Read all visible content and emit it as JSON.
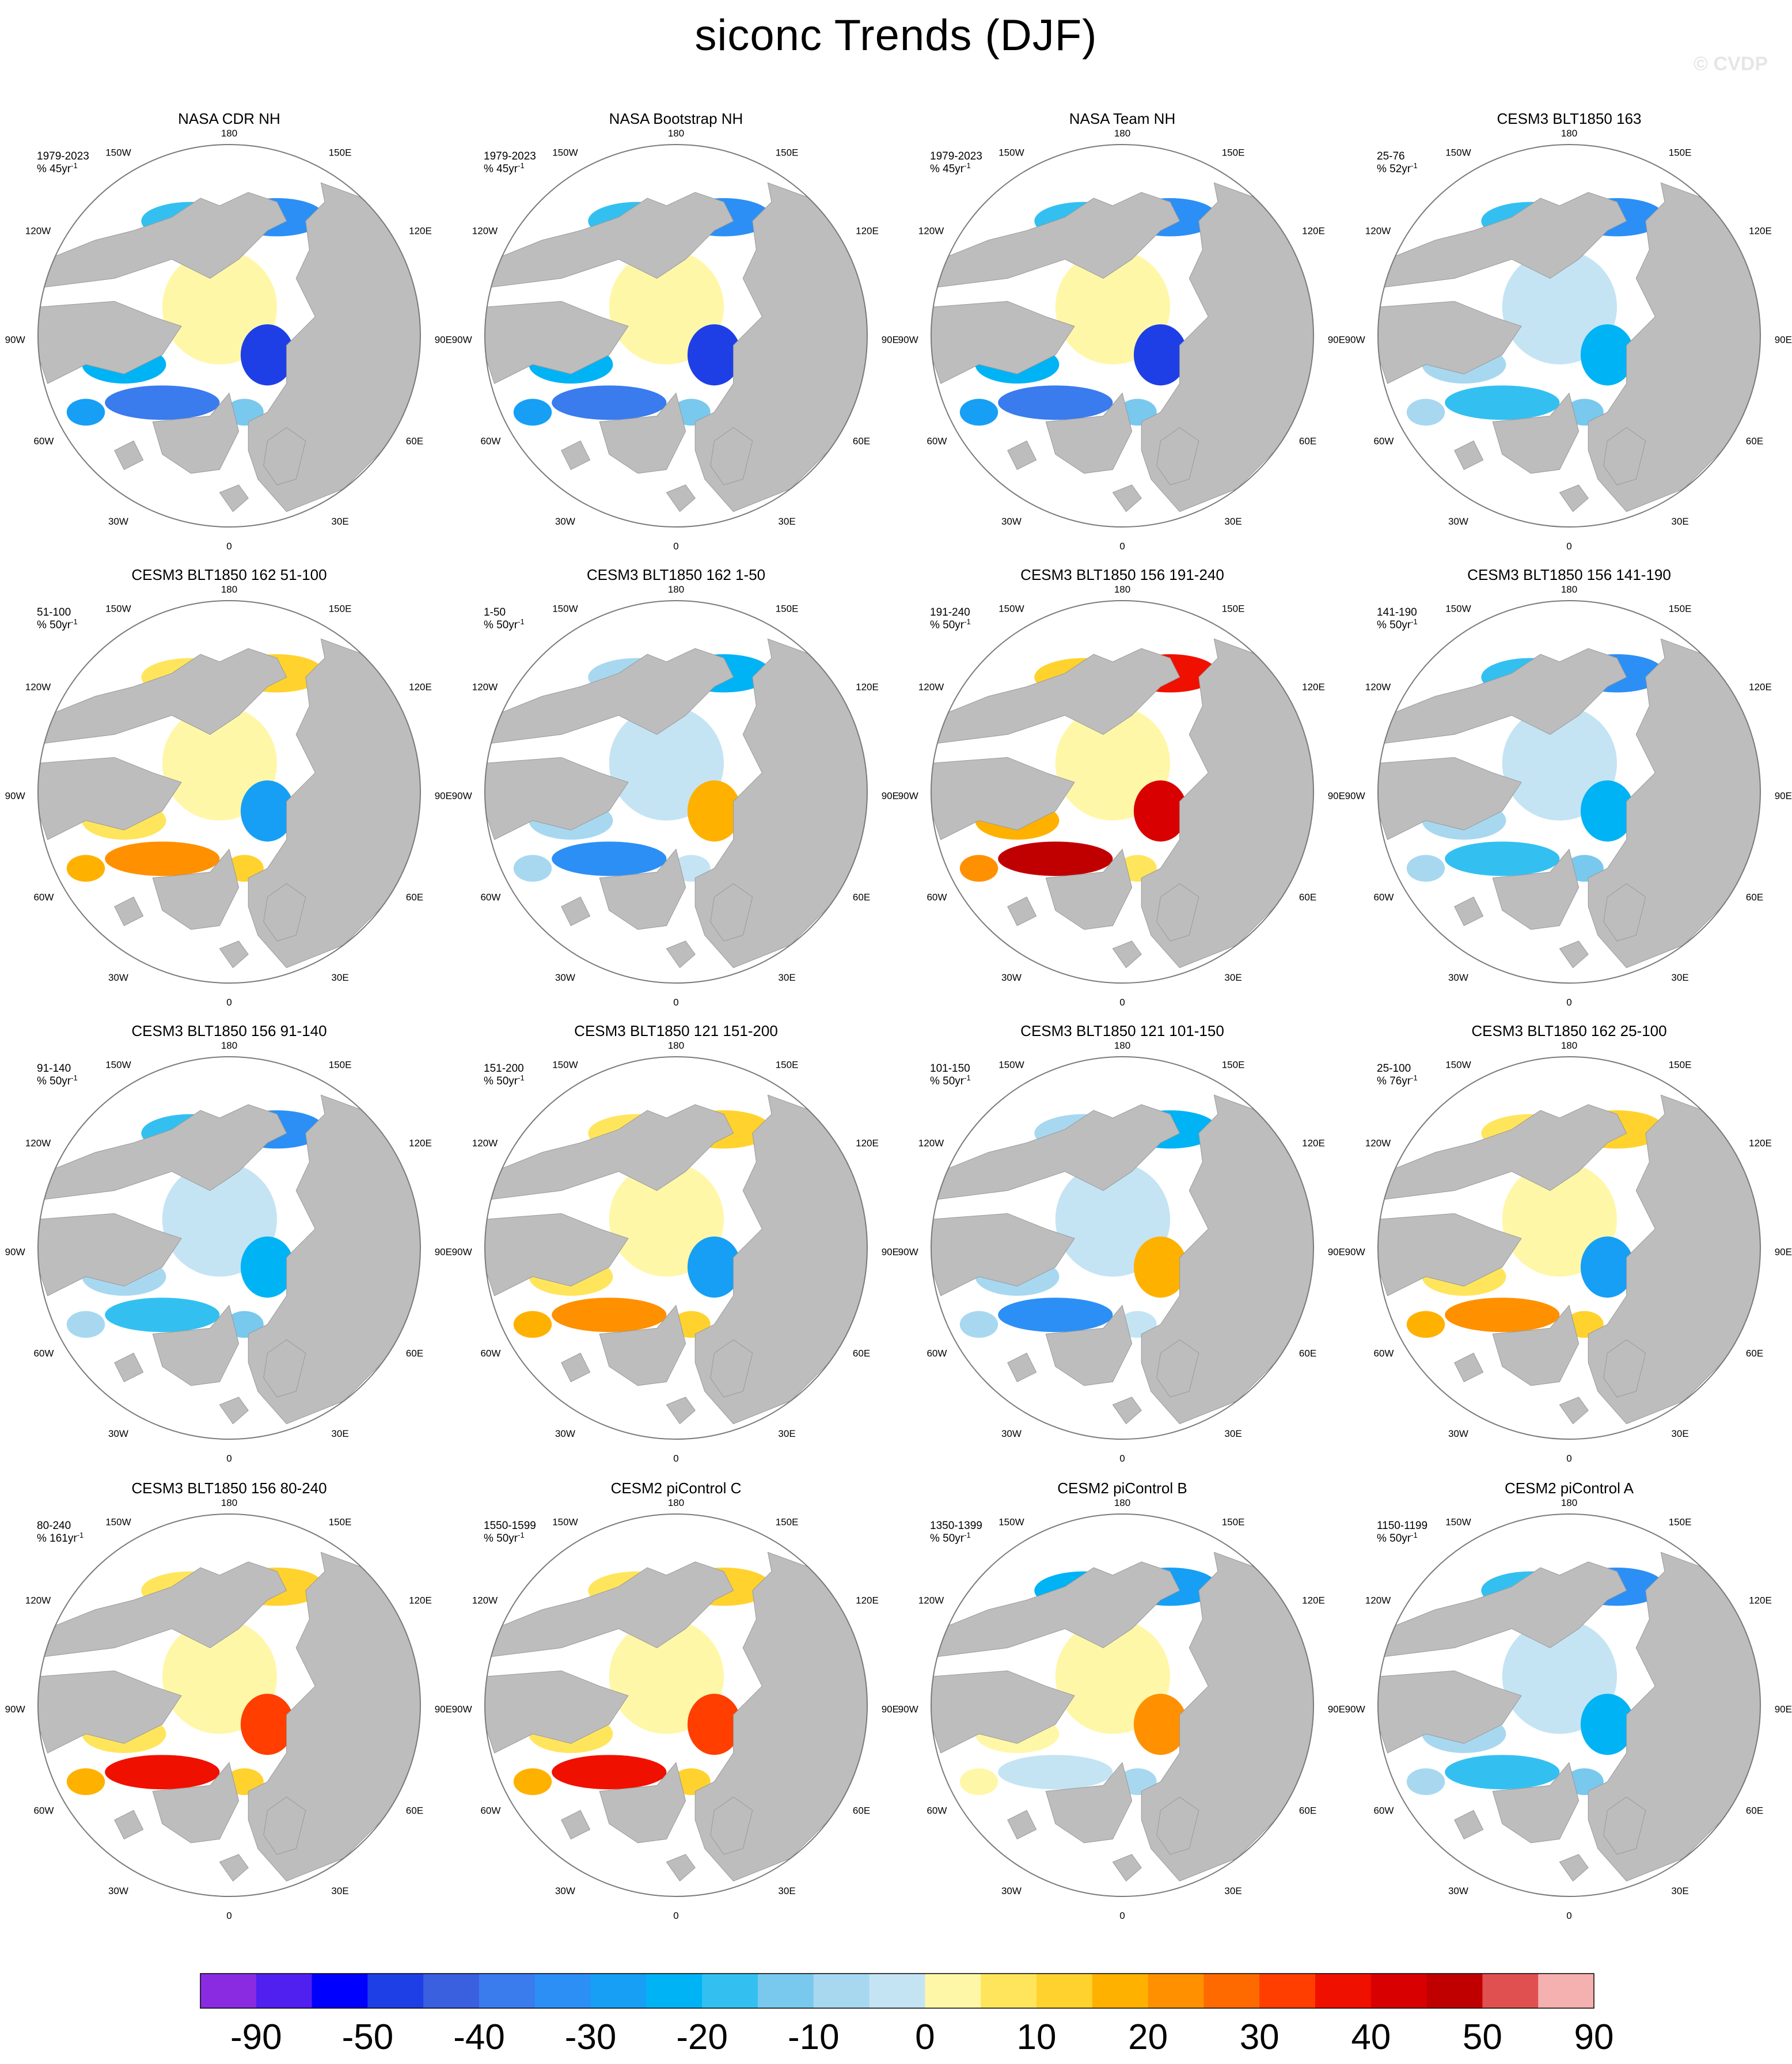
{
  "title": "siconc Trends (DJF)",
  "watermark": "© CVDP",
  "colors": {
    "land": "#bdbdbd",
    "ocean": "#ffffff",
    "border": "#7a7a7a"
  },
  "longitude_labels": {
    "top": "180",
    "bottom": "0",
    "upper_left": "150W",
    "upper_right": "150E",
    "left_upper": "120W",
    "right_upper": "120E",
    "left": "90W",
    "right": "90E",
    "left_lower": "60W",
    "right_lower": "60E",
    "lower_left": "30W",
    "lower_right": "30E"
  },
  "panels": [
    {
      "title": "NASA CDR NH",
      "period": "1979-2023",
      "trend": "% 45yr",
      "pattern": "obs"
    },
    {
      "title": "NASA Bootstrap NH",
      "period": "1979-2023",
      "trend": "% 45yr",
      "pattern": "obs"
    },
    {
      "title": "NASA Team NH",
      "period": "1979-2023",
      "trend": "% 45yr",
      "pattern": "obs"
    },
    {
      "title": "CESM3 BLT1850 163",
      "period": "25-76",
      "trend": "% 52yr",
      "pattern": "mild_neg"
    },
    {
      "title": "CESM3 BLT1850 162 51-100",
      "period": "51-100",
      "trend": "% 50yr",
      "pattern": "warm_mixed"
    },
    {
      "title": "CESM3 BLT1850 162 1-50",
      "period": "1-50",
      "trend": "% 50yr",
      "pattern": "blue_mixed"
    },
    {
      "title": "CESM3 BLT1850 156 191-240",
      "period": "191-240",
      "trend": "% 50yr",
      "pattern": "strong_pos"
    },
    {
      "title": "CESM3 BLT1850 156 141-190",
      "period": "141-190",
      "trend": "% 50yr",
      "pattern": "mild_neg"
    },
    {
      "title": "CESM3 BLT1850 156 91-140",
      "period": "91-140",
      "trend": "% 50yr",
      "pattern": "mild_neg"
    },
    {
      "title": "CESM3 BLT1850 121 151-200",
      "period": "151-200",
      "trend": "% 50yr",
      "pattern": "warm_mixed"
    },
    {
      "title": "CESM3 BLT1850 121 101-150",
      "period": "101-150",
      "trend": "% 50yr",
      "pattern": "blue_mixed"
    },
    {
      "title": "CESM3 BLT1850 162 25-100",
      "period": "25-100",
      "trend": "% 76yr",
      "pattern": "warm_mixed"
    },
    {
      "title": "CESM3 BLT1850 156 80-240",
      "period": "80-240",
      "trend": "% 161yr",
      "pattern": "pos"
    },
    {
      "title": "CESM2 piControl C",
      "period": "1550-1599",
      "trend": "% 50yr",
      "pattern": "pos"
    },
    {
      "title": "CESM2 piControl B",
      "period": "1350-1399",
      "trend": "% 50yr",
      "pattern": "mild_mixed"
    },
    {
      "title": "CESM2 piControl A",
      "period": "1150-1199",
      "trend": "% 50yr",
      "pattern": "mild_neg"
    }
  ],
  "colorbar": {
    "colors": [
      "#8a2be2",
      "#5020f0",
      "#0000ff",
      "#1f3fe6",
      "#3a5fdf",
      "#3a7bee",
      "#2c8ff5",
      "#169ff5",
      "#00b3f5",
      "#33c0f0",
      "#79c8ee",
      "#a8d8f0",
      "#c4e4f4",
      "#fff7a8",
      "#ffe55c",
      "#ffd22e",
      "#ffb100",
      "#ff9000",
      "#ff6a00",
      "#ff3e00",
      "#f01000",
      "#d80000",
      "#c00000",
      "#e05050",
      "#f5b0b0"
    ],
    "labels": [
      "-90",
      "-50",
      "-40",
      "-30",
      "-20",
      "-10",
      "0",
      "10",
      "20",
      "30",
      "40",
      "50",
      "90"
    ]
  }
}
